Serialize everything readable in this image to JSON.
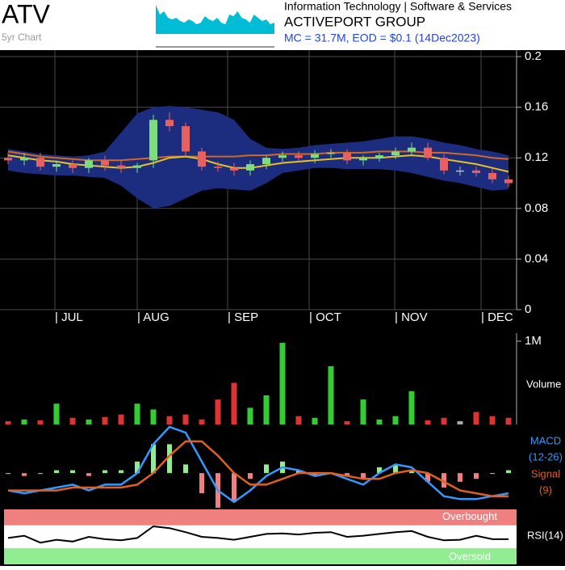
{
  "header": {
    "ticker": "ATV",
    "subtitle": "5yr Chart",
    "sector": "Information Technology | Software & Services",
    "company": "ACTIVEPORT GROUP",
    "summary": "MC = 31.7M, EOD = $0.1 (14Dec2023)"
  },
  "chart_data": [
    {
      "type": "candlestick",
      "xlim": [
        0,
        32
      ],
      "xticks": [
        {
          "value": 3.4,
          "label": "| JUL"
        },
        {
          "value": 8.5,
          "label": "| AUG"
        },
        {
          "value": 14.1,
          "label": "| SEP"
        },
        {
          "value": 19.15,
          "label": "| OCT"
        },
        {
          "value": 24.45,
          "label": "| NOV"
        },
        {
          "value": 29.8,
          "label": "| DEC"
        }
      ],
      "ylim": [
        0,
        0.2
      ],
      "yticks": [
        0.2,
        0.16,
        0.12,
        0.08,
        0.04,
        0
      ],
      "grid": true,
      "open": [
        0.12,
        0.118,
        0.12,
        0.113,
        0.115,
        0.112,
        0.118,
        0.114,
        0.112,
        0.118,
        0.15,
        0.145,
        0.125,
        0.113,
        0.112,
        0.11,
        0.115,
        0.12,
        0.122,
        0.12,
        0.123,
        0.124,
        0.118,
        0.12,
        0.122,
        0.125,
        0.128,
        0.12,
        0.11,
        0.11,
        0.108,
        0.103
      ],
      "high": [
        0.124,
        0.124,
        0.124,
        0.118,
        0.118,
        0.12,
        0.122,
        0.118,
        0.116,
        0.154,
        0.156,
        0.148,
        0.128,
        0.117,
        0.116,
        0.118,
        0.122,
        0.125,
        0.125,
        0.126,
        0.127,
        0.127,
        0.122,
        0.124,
        0.128,
        0.132,
        0.132,
        0.123,
        0.113,
        0.113,
        0.111,
        0.106
      ],
      "low": [
        0.115,
        0.114,
        0.11,
        0.109,
        0.108,
        0.108,
        0.11,
        0.108,
        0.108,
        0.112,
        0.141,
        0.122,
        0.11,
        0.109,
        0.106,
        0.106,
        0.111,
        0.117,
        0.117,
        0.116,
        0.12,
        0.115,
        0.114,
        0.117,
        0.119,
        0.122,
        0.118,
        0.107,
        0.106,
        0.105,
        0.1,
        0.097
      ],
      "close": [
        0.118,
        0.12,
        0.113,
        0.115,
        0.112,
        0.118,
        0.114,
        0.112,
        0.114,
        0.15,
        0.145,
        0.125,
        0.113,
        0.112,
        0.11,
        0.115,
        0.12,
        0.122,
        0.12,
        0.123,
        0.124,
        0.118,
        0.12,
        0.122,
        0.125,
        0.128,
        0.12,
        0.11,
        0.11,
        0.108,
        0.103,
        0.1
      ],
      "up_color": "#7ddc7d",
      "down_color": "#e86060",
      "flat_color": "#bbbbbb",
      "band": {
        "color": "#1c2d80",
        "upper": [
          0.127,
          0.125,
          0.123,
          0.122,
          0.121,
          0.122,
          0.125,
          0.14,
          0.155,
          0.16,
          0.161,
          0.16,
          0.158,
          0.156,
          0.15,
          0.135,
          0.128,
          0.127,
          0.128,
          0.13,
          0.131,
          0.132,
          0.133,
          0.135,
          0.137,
          0.137,
          0.135,
          0.132,
          0.13,
          0.127,
          0.125,
          0.122
        ],
        "lower": [
          0.11,
          0.108,
          0.107,
          0.106,
          0.106,
          0.105,
          0.104,
          0.098,
          0.088,
          0.08,
          0.082,
          0.088,
          0.094,
          0.096,
          0.095,
          0.094,
          0.1,
          0.108,
          0.11,
          0.112,
          0.112,
          0.111,
          0.111,
          0.111,
          0.11,
          0.108,
          0.105,
          0.102,
          0.1,
          0.097,
          0.094,
          0.095
        ]
      },
      "lines": [
        {
          "color": "#d2691e",
          "values": [
            0.125,
            0.123,
            0.121,
            0.12,
            0.119,
            0.118,
            0.118,
            0.118,
            0.119,
            0.12,
            0.121,
            0.121,
            0.121,
            0.121,
            0.121,
            0.122,
            0.122,
            0.123,
            0.123,
            0.123,
            0.124,
            0.124,
            0.124,
            0.125,
            0.125,
            0.125,
            0.124,
            0.124,
            0.123,
            0.122,
            0.12,
            0.119
          ]
        },
        {
          "color": "#e8c020",
          "values": [
            0.122,
            0.12,
            0.118,
            0.117,
            0.115,
            0.114,
            0.113,
            0.112,
            0.113,
            0.116,
            0.12,
            0.121,
            0.119,
            0.115,
            0.112,
            0.112,
            0.114,
            0.116,
            0.117,
            0.118,
            0.119,
            0.12,
            0.12,
            0.12,
            0.121,
            0.122,
            0.121,
            0.119,
            0.117,
            0.115,
            0.112,
            0.109
          ]
        }
      ]
    },
    {
      "type": "bar",
      "ylabel": "Volume",
      "ylim": [
        0,
        1000000
      ],
      "yticks": [
        {
          "value": 1000000,
          "label": "1M"
        }
      ],
      "up_color": "#33cc33",
      "down_color": "#dd3333",
      "flat_color": "#aaaaaa",
      "values": [
        40000,
        60000,
        50000,
        250000,
        80000,
        60000,
        90000,
        120000,
        250000,
        180000,
        100000,
        120000,
        60000,
        300000,
        500000,
        200000,
        350000,
        980000,
        100000,
        80000,
        700000,
        40000,
        300000,
        60000,
        100000,
        400000,
        50000,
        80000,
        40000,
        150000,
        100000,
        80000
      ]
    },
    {
      "type": "macd",
      "ylim": [
        -0.012,
        0.016
      ],
      "series": [
        {
          "name": "MACD",
          "params": "(12-26)",
          "color": "#3399ff",
          "values": [
            -0.006,
            -0.007,
            -0.006,
            -0.005,
            -0.004,
            -0.006,
            -0.004,
            -0.004,
            0.0,
            0.01,
            0.016,
            0.014,
            0.004,
            -0.006,
            -0.01,
            -0.006,
            -0.001,
            0.002,
            0.001,
            -0.001,
            0.0,
            -0.002,
            -0.004,
            0.0,
            0.003,
            0.002,
            -0.003,
            -0.008,
            -0.009,
            -0.009,
            -0.008,
            -0.007
          ]
        },
        {
          "name": "Signal",
          "params": "(9)",
          "color": "#e06020",
          "values": [
            -0.006,
            -0.006,
            -0.006,
            -0.006,
            -0.005,
            -0.005,
            -0.005,
            -0.005,
            -0.004,
            0.0,
            0.006,
            0.011,
            0.011,
            0.006,
            0.0,
            -0.004,
            -0.004,
            -0.002,
            0.0,
            0.0,
            0.0,
            -0.001,
            -0.002,
            -0.002,
            0.0,
            0.001,
            0.0,
            -0.003,
            -0.006,
            -0.007,
            -0.008,
            -0.008
          ]
        }
      ],
      "histogram": {
        "pos_color": "#90ee90",
        "neg_color": "#f08080",
        "values": [
          0,
          -0.001,
          0,
          0.001,
          0.001,
          -0.001,
          0.001,
          0.001,
          0.004,
          0.01,
          0.01,
          0.003,
          -0.007,
          -0.012,
          -0.01,
          -0.002,
          0.003,
          0.004,
          0.001,
          -0.001,
          0,
          -0.001,
          -0.002,
          0.002,
          0.003,
          0.001,
          -0.003,
          -0.005,
          -0.003,
          -0.002,
          0,
          0.001
        ]
      }
    },
    {
      "type": "rsi",
      "label": "RSI(14)",
      "ylim": [
        0,
        100
      ],
      "overbought_level": 70,
      "oversold_level": 30,
      "overbought_label": "Overbought",
      "oversold_label": "Oversold",
      "overbought_color": "#f08080",
      "oversold_color": "#90ee90",
      "color": "#000000",
      "values": [
        48,
        52,
        40,
        45,
        42,
        50,
        46,
        44,
        48,
        68,
        65,
        58,
        50,
        48,
        45,
        50,
        55,
        56,
        54,
        57,
        58,
        50,
        52,
        55,
        58,
        60,
        50,
        44,
        45,
        52,
        46,
        46
      ]
    },
    {
      "type": "area",
      "ylim": [
        0,
        1
      ],
      "color": "#00bcd4",
      "values": [
        0.9,
        0.6,
        0.7,
        0.5,
        0.45,
        0.5,
        0.4,
        0.35,
        0.45,
        0.4,
        0.3,
        0.35,
        0.55,
        0.45,
        0.4,
        0.5,
        0.35,
        0.3,
        0.6,
        0.55,
        0.7,
        0.5,
        0.45,
        0.35,
        0.6,
        0.5,
        0.4,
        0.45,
        0.3,
        0.35
      ]
    }
  ]
}
